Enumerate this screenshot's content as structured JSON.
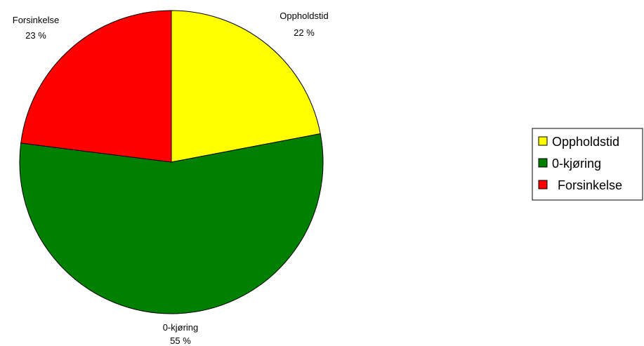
{
  "chart_data": {
    "type": "pie",
    "categories": [
      "Oppholdstid",
      "0-kjøring",
      "Forsinkelse"
    ],
    "values": [
      22,
      55,
      23
    ],
    "value_labels": [
      "22 %",
      "55 %",
      "23 %"
    ],
    "colors": [
      "#ffff00",
      "#008000",
      "#ff0000"
    ],
    "start": "12 o'clock, clockwise",
    "legend": {
      "placement": "right",
      "entries": [
        "Oppholdstid",
        "0-kjøring",
        "Forsinkelse"
      ]
    }
  }
}
